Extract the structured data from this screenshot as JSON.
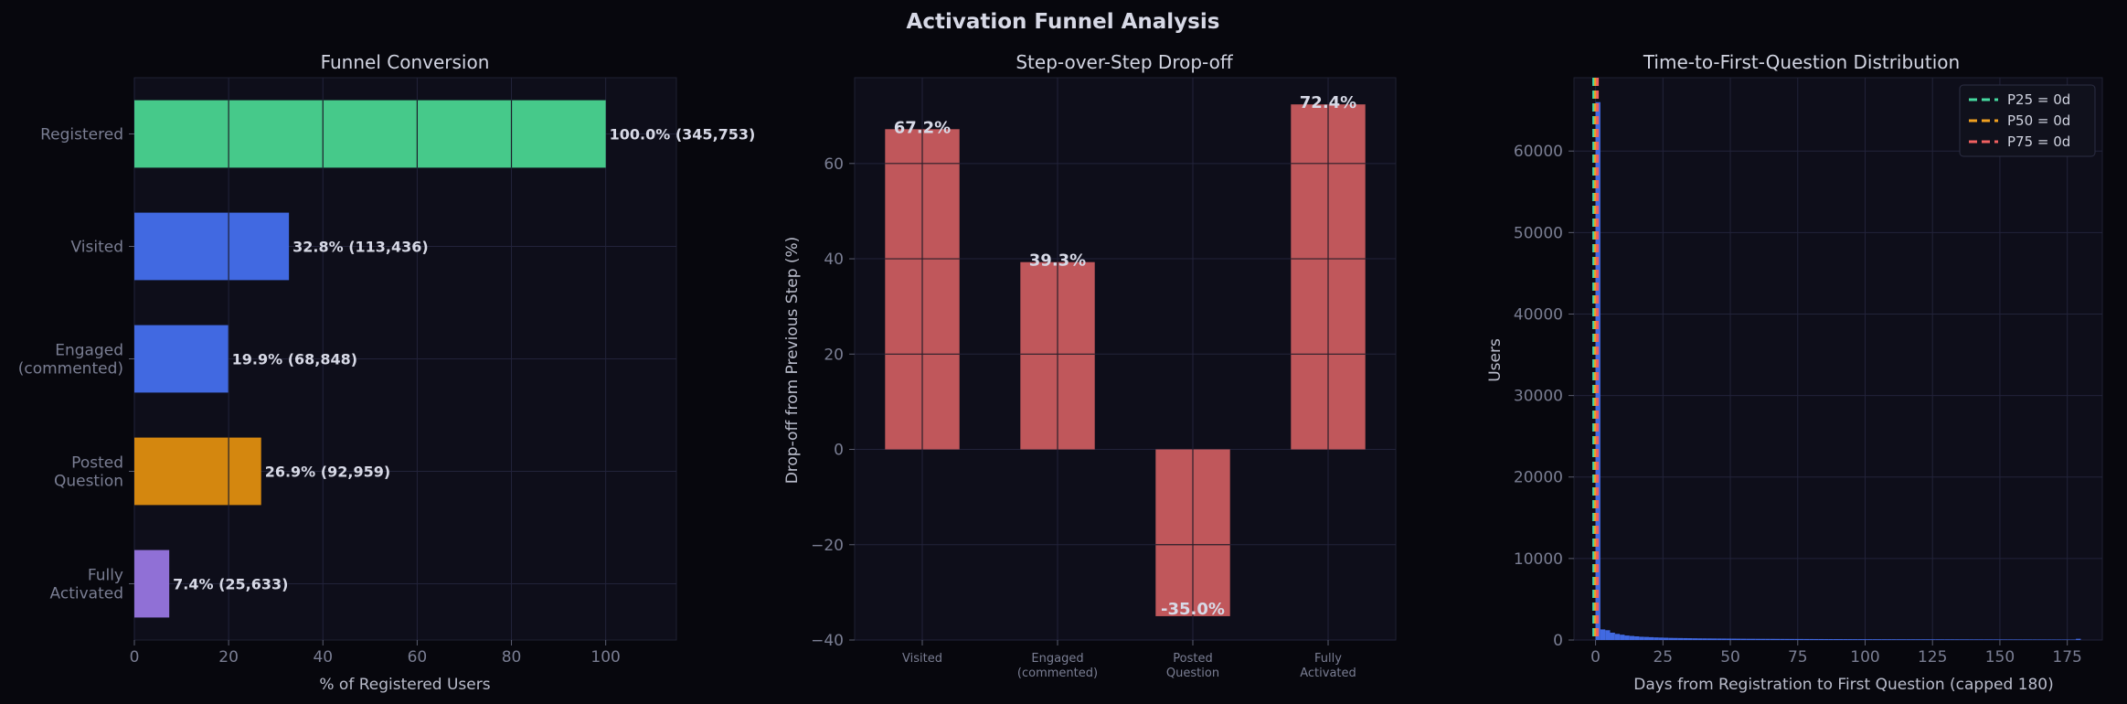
{
  "figure_title": "Activation Funnel Analysis",
  "colors": {
    "background": "#07070d",
    "panel": "#0e0e1a",
    "grid": "#22233a",
    "green": "#46c98a",
    "blue": "#4169e1",
    "orange": "#d4870f",
    "purple": "#9070d6",
    "red": "#c0575b",
    "hist": "#4169e1",
    "p25": "#46d9a0",
    "p50": "#f0a020",
    "p75": "#f06060"
  },
  "chart_data": [
    {
      "type": "bar",
      "orientation": "horizontal",
      "title": "Funnel Conversion",
      "xlabel": "% of Registered Users",
      "xlim": [
        0,
        115
      ],
      "xticks": [
        0,
        20,
        40,
        60,
        80,
        100
      ],
      "categories": [
        "Registered",
        "Visited",
        "Engaged\n(commented)",
        "Posted\nQuestion",
        "Fully\nActivated"
      ],
      "values": [
        100.0,
        32.8,
        19.9,
        26.9,
        7.4
      ],
      "counts": [
        345753,
        113436,
        68848,
        92959,
        25633
      ],
      "labels": [
        "100.0%  (345,753)",
        "32.8%  (113,436)",
        "19.9%  (68,848)",
        "26.9%  (92,959)",
        "7.4%  (25,633)"
      ],
      "bar_colors": [
        "green",
        "blue",
        "blue",
        "orange",
        "purple"
      ],
      "grid": true
    },
    {
      "type": "bar",
      "title": "Step-over-Step Drop-off",
      "ylabel": "Drop-off from Previous Step (%)",
      "ylim": [
        -40,
        78
      ],
      "yticks": [
        -40,
        -20,
        0,
        20,
        40,
        60
      ],
      "categories": [
        "Visited",
        "Engaged\n(commented)",
        "Posted\nQuestion",
        "Fully\nActivated"
      ],
      "values": [
        67.2,
        39.3,
        -35.0,
        72.4
      ],
      "labels": [
        "67.2%",
        "39.3%",
        "-35.0%",
        "72.4%"
      ],
      "grid": true
    },
    {
      "type": "histogram",
      "title": "Time-to-First-Question Distribution",
      "xlabel": "Days from Registration to First Question (capped 180)",
      "ylabel": "Users",
      "xlim": [
        -8,
        188
      ],
      "ylim": [
        0,
        69000
      ],
      "xticks": [
        0,
        25,
        50,
        75,
        100,
        125,
        150,
        175
      ],
      "yticks": [
        0,
        10000,
        20000,
        30000,
        40000,
        50000,
        60000
      ],
      "bin_width": 1.8,
      "bins": [
        [
          0,
          66000
        ],
        [
          1.8,
          1300
        ],
        [
          3.6,
          1200
        ],
        [
          5.4,
          900
        ],
        [
          7.2,
          750
        ],
        [
          9,
          650
        ],
        [
          10.8,
          550
        ],
        [
          12.6,
          500
        ],
        [
          14.4,
          450
        ],
        [
          16.2,
          400
        ],
        [
          18,
          380
        ],
        [
          19.8,
          350
        ],
        [
          21.6,
          320
        ],
        [
          23.4,
          300
        ],
        [
          25.2,
          280
        ],
        [
          27,
          260
        ],
        [
          28.8,
          250
        ],
        [
          30.6,
          240
        ],
        [
          32.4,
          230
        ],
        [
          34.2,
          220
        ],
        [
          36,
          210
        ],
        [
          37.8,
          200
        ],
        [
          39.6,
          195
        ],
        [
          41.4,
          190
        ],
        [
          43.2,
          185
        ],
        [
          45,
          180
        ],
        [
          46.8,
          175
        ],
        [
          48.6,
          170
        ],
        [
          50.4,
          165
        ],
        [
          52.2,
          160
        ],
        [
          54,
          155
        ],
        [
          55.8,
          150
        ],
        [
          57.6,
          148
        ],
        [
          59.4,
          145
        ],
        [
          61.2,
          142
        ],
        [
          63,
          140
        ],
        [
          64.8,
          138
        ],
        [
          66.6,
          135
        ],
        [
          68.4,
          132
        ],
        [
          70.2,
          130
        ],
        [
          72,
          128
        ],
        [
          73.8,
          126
        ],
        [
          75.6,
          124
        ],
        [
          77.4,
          122
        ],
        [
          79.2,
          120
        ],
        [
          81,
          118
        ],
        [
          82.8,
          116
        ],
        [
          84.6,
          114
        ],
        [
          86.4,
          112
        ],
        [
          88.2,
          110
        ],
        [
          90,
          108
        ],
        [
          91.8,
          106
        ],
        [
          93.6,
          104
        ],
        [
          95.4,
          102
        ],
        [
          97.2,
          100
        ],
        [
          99,
          98
        ],
        [
          100.8,
          96
        ],
        [
          102.6,
          95
        ],
        [
          104.4,
          94
        ],
        [
          106.2,
          93
        ],
        [
          108,
          92
        ],
        [
          109.8,
          91
        ],
        [
          111.6,
          90
        ],
        [
          113.4,
          89
        ],
        [
          115.2,
          88
        ],
        [
          117,
          87
        ],
        [
          118.8,
          86
        ],
        [
          120.6,
          85
        ],
        [
          122.4,
          84
        ],
        [
          124.2,
          83
        ],
        [
          126,
          82
        ],
        [
          127.8,
          81
        ],
        [
          129.6,
          80
        ],
        [
          131.4,
          79
        ],
        [
          133.2,
          78
        ],
        [
          135,
          77
        ],
        [
          136.8,
          76
        ],
        [
          138.6,
          75
        ],
        [
          140.4,
          74
        ],
        [
          142.2,
          73
        ],
        [
          144,
          72
        ],
        [
          145.8,
          71
        ],
        [
          147.6,
          70
        ],
        [
          149.4,
          69
        ],
        [
          151.2,
          68
        ],
        [
          153,
          67
        ],
        [
          154.8,
          66
        ],
        [
          156.6,
          65
        ],
        [
          158.4,
          64
        ],
        [
          160.2,
          63
        ],
        [
          162,
          62
        ],
        [
          163.8,
          61
        ],
        [
          165.6,
          60
        ],
        [
          167.4,
          59
        ],
        [
          169.2,
          58
        ],
        [
          171,
          57
        ],
        [
          172.8,
          56
        ],
        [
          174.6,
          55
        ],
        [
          176.4,
          54
        ],
        [
          178.2,
          150
        ]
      ],
      "percentiles": [
        {
          "label": "P25 = 0d",
          "value": 0,
          "color": "p25"
        },
        {
          "label": "P50 = 0d",
          "value": 0,
          "color": "p50"
        },
        {
          "label": "P75 = 0d",
          "value": 0,
          "color": "p75"
        }
      ],
      "legend_position": "top-right",
      "grid": true
    }
  ]
}
